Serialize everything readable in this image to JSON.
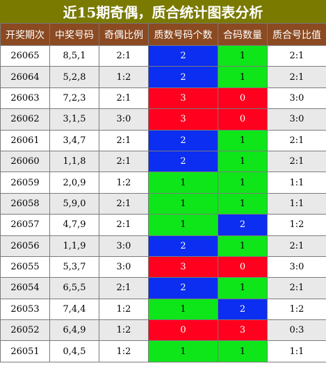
{
  "title": "近15期奇偶，质合统计图表分析",
  "headers": [
    "开奖期次",
    "中奖号码",
    "奇偶比例",
    "质数号码个数",
    "合码数量",
    "质合号比值"
  ],
  "colors": {
    "blue": "#0c2ef0",
    "green": "#0ee61a",
    "red": "#ff001e",
    "header_bg": "#8b4a21",
    "title_bg": "#7a7a00"
  },
  "rows": [
    {
      "period": "26065",
      "numbers": "8,5,1",
      "odd_even": "2:1",
      "prime_count": "2",
      "prime_color": "blue",
      "composite_count": "1",
      "composite_color": "green",
      "ratio": "2:1"
    },
    {
      "period": "26064",
      "numbers": "5,2,8",
      "odd_even": "1:2",
      "prime_count": "2",
      "prime_color": "blue",
      "composite_count": "1",
      "composite_color": "green",
      "ratio": "2:1"
    },
    {
      "period": "26063",
      "numbers": "7,2,3",
      "odd_even": "2:1",
      "prime_count": "3",
      "prime_color": "red",
      "composite_count": "0",
      "composite_color": "red",
      "ratio": "3:0"
    },
    {
      "period": "26062",
      "numbers": "3,1,5",
      "odd_even": "3:0",
      "prime_count": "3",
      "prime_color": "red",
      "composite_count": "0",
      "composite_color": "red",
      "ratio": "3:0"
    },
    {
      "period": "26061",
      "numbers": "3,4,7",
      "odd_even": "2:1",
      "prime_count": "2",
      "prime_color": "blue",
      "composite_count": "1",
      "composite_color": "green",
      "ratio": "2:1"
    },
    {
      "period": "26060",
      "numbers": "1,1,8",
      "odd_even": "2:1",
      "prime_count": "2",
      "prime_color": "blue",
      "composite_count": "1",
      "composite_color": "green",
      "ratio": "2:1"
    },
    {
      "period": "26059",
      "numbers": "2,0,9",
      "odd_even": "1:2",
      "prime_count": "1",
      "prime_color": "green",
      "composite_count": "1",
      "composite_color": "green",
      "ratio": "1:1"
    },
    {
      "period": "26058",
      "numbers": "5,9,0",
      "odd_even": "2:1",
      "prime_count": "1",
      "prime_color": "green",
      "composite_count": "1",
      "composite_color": "green",
      "ratio": "1:1"
    },
    {
      "period": "26057",
      "numbers": "4,7,9",
      "odd_even": "2:1",
      "prime_count": "1",
      "prime_color": "green",
      "composite_count": "2",
      "composite_color": "blue",
      "ratio": "1:2"
    },
    {
      "period": "26056",
      "numbers": "1,1,9",
      "odd_even": "3:0",
      "prime_count": "2",
      "prime_color": "blue",
      "composite_count": "1",
      "composite_color": "green",
      "ratio": "2:1"
    },
    {
      "period": "26055",
      "numbers": "5,3,7",
      "odd_even": "3:0",
      "prime_count": "3",
      "prime_color": "red",
      "composite_count": "0",
      "composite_color": "red",
      "ratio": "3:0"
    },
    {
      "period": "26054",
      "numbers": "6,5,5",
      "odd_even": "2:1",
      "prime_count": "2",
      "prime_color": "blue",
      "composite_count": "1",
      "composite_color": "green",
      "ratio": "2:1"
    },
    {
      "period": "26053",
      "numbers": "7,4,4",
      "odd_even": "1:2",
      "prime_count": "1",
      "prime_color": "green",
      "composite_count": "2",
      "composite_color": "blue",
      "ratio": "1:2"
    },
    {
      "period": "26052",
      "numbers": "6,4,9",
      "odd_even": "1:2",
      "prime_count": "0",
      "prime_color": "red",
      "composite_count": "3",
      "composite_color": "red",
      "ratio": "0:3"
    },
    {
      "period": "26051",
      "numbers": "0,4,5",
      "odd_even": "1:2",
      "prime_count": "1",
      "prime_color": "green",
      "composite_count": "1",
      "composite_color": "green",
      "ratio": "1:1"
    }
  ]
}
